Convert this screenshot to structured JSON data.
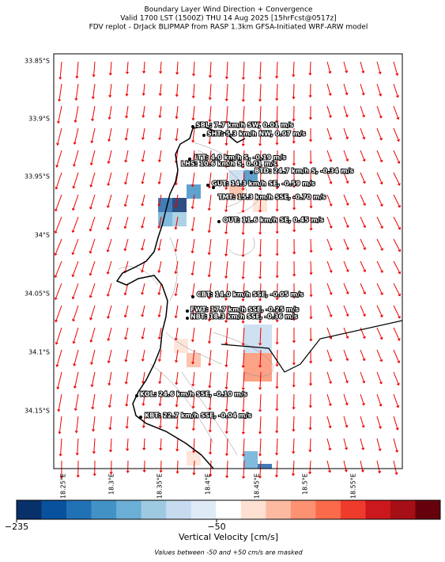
{
  "header": {
    "title_lines": [
      "Boundary Layer Wind Direction + Convergence",
      "Valid 1700 LST (1500Z) THU 14 Aug 2025 [15hrFcst@0517z]",
      "FDV replot - DrJack BLIPMAP from RASP 1.3km GFSA-Initiated WRF-ARW model"
    ]
  },
  "map": {
    "lat_labels": [
      "33.85°S",
      "33.9°S",
      "33.95°S",
      "34°S",
      "34.05°S",
      "34.1°S",
      "34.15°S"
    ],
    "lon_labels": [
      "18.25°E",
      "18.3°E",
      "18.35°E",
      "18.4°E",
      "18.45°E",
      "18.5°E",
      "18.55°E"
    ],
    "stations": [
      {
        "label": "SBL: 7.7 km/h SW, 0.01 m/s"
      },
      {
        "label": "SHT: 5.3 km/h NW, 0.07 m/s"
      },
      {
        "label": "LTT: 4.0 km/h S, -0.19 m/s"
      },
      {
        "label": "LHS: 10.6 km/h S, 0.01 m/s"
      },
      {
        "label": "BTD: 24.7 km/h S, -0.34 m/s"
      },
      {
        "label": "GUT: 14.3 km/h SE, -0.59 m/s"
      },
      {
        "label": "TMT: 15.3 km/h SSE, -0.70 m/s"
      },
      {
        "label": "OUT: 11.6 km/h SE, 0.45 m/s"
      },
      {
        "label": "CBT: 14.0 km/h SSE, -0.05 m/s"
      },
      {
        "label": "FWT: 17.7 km/h SSE, -0.25 m/s"
      },
      {
        "label": "NBT: 18.3 km/h SSE, -0.36 m/s"
      },
      {
        "label": "KOL: 24.6 km/h SSE, -0.10 m/s"
      },
      {
        "label": "KBT: 22.7 km/h SSE, -0.04 m/s"
      }
    ]
  },
  "colorbar": {
    "labels": [
      "−235",
      "−50"
    ],
    "title": "Vertical Velocity [cm/s]"
  },
  "footnote": "Values between -50 and +50 cm/s are masked"
}
